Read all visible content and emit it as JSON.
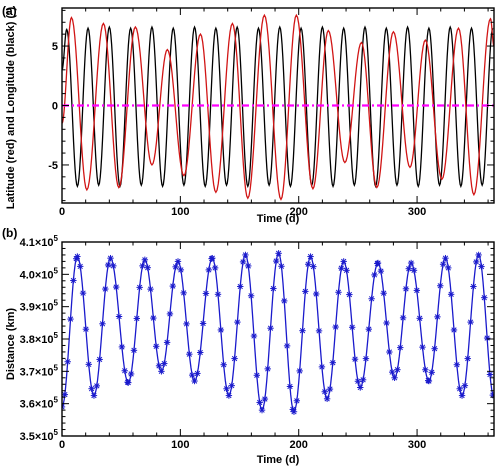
{
  "chart_data": [
    {
      "type": "line",
      "panel_label": "(a)",
      "xlabel": "Time (d)",
      "ylabel": "Latitude (red) and Longitude (black) (°)",
      "xlim": [
        0,
        365
      ],
      "ylim": [
        -8.2,
        8.2
      ],
      "x_ticks": [
        0,
        100,
        200,
        300
      ],
      "y_ticks": [
        -5,
        0,
        5
      ],
      "y_tick_labels": [
        "-5",
        "0",
        "5"
      ],
      "grid": false,
      "series": [
        {
          "role": "longitude",
          "color": "#000000",
          "x": [
            0,
            4,
            13,
            22,
            31,
            40,
            49,
            58,
            67,
            76,
            85,
            94,
            103,
            112,
            121,
            130,
            139,
            148,
            157,
            166,
            175,
            184,
            193,
            202,
            211,
            220,
            229,
            238,
            247,
            256,
            265,
            274,
            283,
            292,
            301,
            310,
            319,
            328,
            337,
            346,
            355,
            364
          ],
          "y": [
            3.0,
            6.4,
            -6.8,
            6.5,
            -6.7,
            6.6,
            -6.8,
            6.5,
            -6.7,
            6.6,
            -6.8,
            6.5,
            -6.7,
            6.6,
            -6.8,
            6.5,
            -6.7,
            6.6,
            -6.8,
            6.5,
            -6.7,
            6.6,
            -6.8,
            6.5,
            -6.7,
            6.6,
            -6.8,
            6.5,
            -6.7,
            6.6,
            -6.8,
            6.5,
            -6.7,
            6.6,
            -6.8,
            6.5,
            -6.7,
            6.6,
            -6.8,
            6.5,
            -6.7,
            6.5
          ]
        },
        {
          "role": "latitude",
          "color": "#d11515",
          "x": [
            0,
            8,
            21,
            35,
            48,
            62,
            76,
            89,
            103,
            117,
            130,
            144,
            157,
            171,
            185,
            198,
            212,
            225,
            239,
            253,
            266,
            280,
            294,
            307,
            321,
            335,
            348,
            362,
            365
          ],
          "y": [
            -1.5,
            7.4,
            -7.1,
            6.9,
            -6.9,
            6.6,
            -5.0,
            4.7,
            -5.9,
            6.0,
            -7.3,
            6.9,
            -7.8,
            7.6,
            -7.9,
            7.6,
            -7.0,
            6.3,
            -4.8,
            5.3,
            -6.9,
            6.2,
            -5.2,
            5.5,
            -6.2,
            6.5,
            -7.5,
            7.3,
            5.0
          ]
        },
        {
          "role": "zero line",
          "color": "#ff00ff",
          "dash": true,
          "x": [
            0,
            365
          ],
          "y": [
            0,
            0
          ]
        }
      ]
    },
    {
      "type": "line",
      "panel_label": "(b)",
      "xlabel": "Time (d)",
      "ylabel": "Distance (km)",
      "xlim": [
        0,
        365
      ],
      "ylim": [
        350000,
        410000
      ],
      "x_ticks": [
        0,
        100,
        200,
        300
      ],
      "y_ticks": [
        350000,
        360000,
        370000,
        380000,
        390000,
        400000,
        410000
      ],
      "y_tick_mantissas": [
        "3.5",
        "3.6",
        "3.7",
        "3.8",
        "3.9",
        "4.0",
        "4.1"
      ],
      "y_tick_base": "×10",
      "y_tick_exponent": "5",
      "grid": false,
      "marker": "asterisk",
      "series": [
        {
          "role": "distance",
          "color": "#1a1acc",
          "x": [
            0,
            13,
            27,
            41,
            56,
            70,
            84,
            98,
            112,
            127,
            141,
            155,
            169,
            183,
            196,
            210,
            224,
            238,
            252,
            267,
            281,
            295,
            310,
            324,
            338,
            352,
            365
          ],
          "y": [
            359000,
            405500,
            362500,
            405000,
            366500,
            404500,
            370000,
            404000,
            367000,
            405000,
            362500,
            406000,
            358000,
            406500,
            357500,
            405500,
            361500,
            404000,
            365000,
            403500,
            368000,
            403500,
            367000,
            405000,
            362500,
            406000,
            362000
          ]
        }
      ]
    }
  ]
}
